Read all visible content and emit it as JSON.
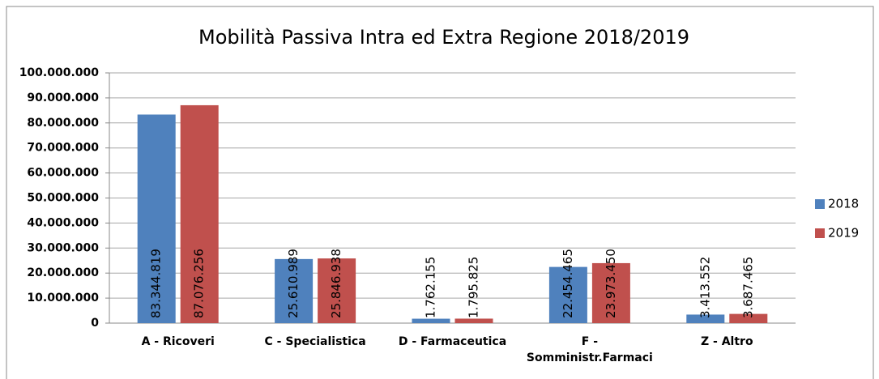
{
  "chart_data": {
    "type": "bar",
    "title": "Mobilità Passiva Intra ed Extra Regione 2018/2019",
    "categories": [
      "A - Ricoveri",
      "C - Specialistica",
      "D - Farmaceutica",
      "F - Somministr.Farmaci",
      "Z - Altro"
    ],
    "series": [
      {
        "name": "2018",
        "color": "#4f81bd",
        "values": [
          83344819,
          25610989,
          1762155,
          22454465,
          3413552
        ],
        "value_labels": [
          "83.344.819",
          "25.610.989",
          "1.762.155",
          "22.454.465",
          "3.413.552"
        ]
      },
      {
        "name": "2019",
        "color": "#c0504d",
        "values": [
          87076256,
          25846938,
          1795825,
          23973450,
          3687465
        ],
        "value_labels": [
          "87.076.256",
          "25.846.938",
          "1.795.825",
          "23.973.450",
          "3.687.465"
        ]
      }
    ],
    "ylim": [
      0,
      100000000
    ],
    "yticks": [
      0,
      {
        "value": 10000000,
        "label": "10.000.000"
      },
      {
        "value": 20000000,
        "label": "20.000.000"
      },
      {
        "value": 30000000,
        "label": "30.000.000"
      },
      {
        "value": 40000000,
        "label": "40.000.000"
      },
      {
        "value": 50000000,
        "label": "50.000.000"
      },
      {
        "value": 60000000,
        "label": "60.000.000"
      },
      {
        "value": 70000000,
        "label": "70.000.000"
      },
      {
        "value": 80000000,
        "label": "80.000.000"
      },
      {
        "value": 90000000,
        "label": "90.000.000"
      },
      {
        "value": 100000000,
        "label": "100.000.000"
      }
    ],
    "grid": true,
    "legend": "right"
  }
}
